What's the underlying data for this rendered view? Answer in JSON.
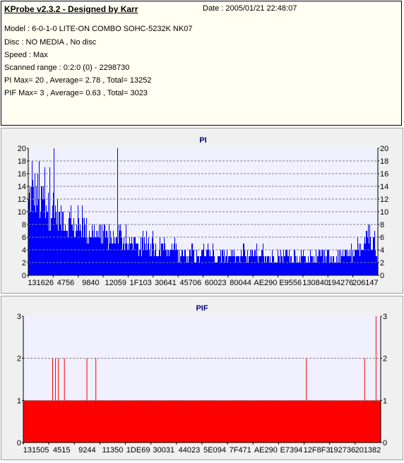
{
  "info": {
    "title": "KProbe v2.3.2 - Designed by Karr",
    "date": "Date : 2005/01/21 22:48:07",
    "lines": [
      "Model : 6-0-1-0 LITE-ON COMBO SOHC-5232K NK07",
      "Disc : NO MEDIA , No disc",
      "Speed : Max",
      "Scanned range : 0:2:0 (0) - 2298730",
      "PI Max= 20 , Average= 2.78 , Total= 13252",
      "PIF Max= 3 , Average= 0.63 , Total= 3023"
    ]
  },
  "colors": {
    "pi": "#0000ff",
    "pif": "#ff0000",
    "plot_bg": "#f0f0ff",
    "grid": "#808080"
  },
  "chart_data": [
    {
      "type": "bar",
      "title": "PI",
      "ylim": [
        0,
        20
      ],
      "yticks": [
        0,
        2,
        4,
        6,
        8,
        10,
        12,
        14,
        16,
        18,
        20
      ],
      "x_tick_labels": [
        "131626",
        "4756",
        "9840",
        "12059",
        "1F103",
        "30641",
        "45706",
        "60023",
        "80044",
        "AE290",
        "E9556",
        "130840",
        "194276",
        "206147"
      ],
      "grid": true,
      "envelope": [
        [
          0.0,
          14
        ],
        [
          0.005,
          17
        ],
        [
          0.01,
          15
        ],
        [
          0.015,
          18
        ],
        [
          0.02,
          16
        ],
        [
          0.025,
          17
        ],
        [
          0.03,
          15
        ],
        [
          0.035,
          14
        ],
        [
          0.04,
          16
        ],
        [
          0.05,
          15
        ],
        [
          0.06,
          13
        ],
        [
          0.07,
          14
        ],
        [
          0.075,
          12
        ],
        [
          0.08,
          13
        ],
        [
          0.09,
          11
        ],
        [
          0.1,
          12
        ],
        [
          0.11,
          10
        ],
        [
          0.12,
          11
        ],
        [
          0.13,
          9
        ],
        [
          0.14,
          10
        ],
        [
          0.15,
          9
        ],
        [
          0.16,
          10
        ],
        [
          0.17,
          8
        ],
        [
          0.18,
          9
        ],
        [
          0.19,
          8
        ],
        [
          0.2,
          9
        ],
        [
          0.21,
          7
        ],
        [
          0.22,
          8
        ],
        [
          0.23,
          7
        ],
        [
          0.24,
          8
        ],
        [
          0.25,
          6
        ],
        [
          0.26,
          8
        ],
        [
          0.27,
          7
        ],
        [
          0.28,
          6
        ],
        [
          0.29,
          6
        ],
        [
          0.3,
          7
        ],
        [
          0.31,
          6
        ],
        [
          0.32,
          5
        ],
        [
          0.33,
          6
        ],
        [
          0.34,
          6
        ],
        [
          0.35,
          5
        ],
        [
          0.36,
          6
        ],
        [
          0.37,
          5
        ],
        [
          0.38,
          5
        ],
        [
          0.39,
          6
        ],
        [
          0.4,
          4
        ],
        [
          0.41,
          5
        ],
        [
          0.42,
          6
        ],
        [
          0.43,
          4
        ],
        [
          0.44,
          5
        ],
        [
          0.45,
          4
        ],
        [
          0.46,
          4
        ],
        [
          0.47,
          5
        ],
        [
          0.48,
          4
        ],
        [
          0.49,
          4
        ],
        [
          0.5,
          5
        ],
        [
          0.51,
          4
        ],
        [
          0.52,
          4
        ],
        [
          0.53,
          4
        ],
        [
          0.54,
          3
        ],
        [
          0.55,
          4
        ],
        [
          0.56,
          4
        ],
        [
          0.57,
          3
        ],
        [
          0.58,
          4
        ],
        [
          0.59,
          4
        ],
        [
          0.6,
          3
        ],
        [
          0.61,
          4
        ],
        [
          0.62,
          4
        ],
        [
          0.63,
          3
        ],
        [
          0.64,
          4
        ],
        [
          0.65,
          4
        ],
        [
          0.66,
          3
        ],
        [
          0.67,
          4
        ],
        [
          0.68,
          4
        ],
        [
          0.69,
          3
        ],
        [
          0.7,
          4
        ],
        [
          0.71,
          4
        ],
        [
          0.72,
          3
        ],
        [
          0.73,
          4
        ],
        [
          0.74,
          4
        ],
        [
          0.75,
          3
        ],
        [
          0.76,
          4
        ],
        [
          0.77,
          3
        ],
        [
          0.78,
          4
        ],
        [
          0.79,
          4
        ],
        [
          0.8,
          3
        ],
        [
          0.81,
          4
        ],
        [
          0.82,
          3
        ],
        [
          0.83,
          4
        ],
        [
          0.84,
          4
        ],
        [
          0.85,
          3
        ],
        [
          0.86,
          4
        ],
        [
          0.87,
          4
        ],
        [
          0.88,
          3
        ],
        [
          0.89,
          4
        ],
        [
          0.9,
          4
        ],
        [
          0.91,
          5
        ],
        [
          0.92,
          4
        ],
        [
          0.93,
          4
        ],
        [
          0.94,
          5
        ],
        [
          0.95,
          5
        ],
        [
          0.96,
          5
        ],
        [
          0.97,
          6
        ],
        [
          0.975,
          9
        ],
        [
          0.98,
          7
        ],
        [
          0.985,
          5
        ],
        [
          0.99,
          6
        ],
        [
          0.995,
          5
        ],
        [
          1.0,
          4
        ]
      ],
      "peaks": [
        [
          0.073,
          20
        ],
        [
          0.255,
          20
        ],
        [
          0.01,
          18
        ],
        [
          0.03,
          18
        ],
        [
          0.06,
          17
        ]
      ]
    },
    {
      "type": "bar",
      "title": "PIF",
      "ylim": [
        0,
        3
      ],
      "yticks": [
        0,
        1,
        2,
        3
      ],
      "x_tick_labels": [
        "131505",
        "4515",
        "9244",
        "11350",
        "1DE69",
        "30031",
        "44023",
        "5E094",
        "7F471",
        "AE290",
        "E7394",
        "12F8F3",
        "192736",
        "201382"
      ],
      "grid": true,
      "baseline": 1,
      "spikes": [
        [
          0.082,
          2
        ],
        [
          0.09,
          2
        ],
        [
          0.098,
          2
        ],
        [
          0.115,
          2
        ],
        [
          0.178,
          2
        ],
        [
          0.203,
          2
        ],
        [
          0.792,
          2
        ],
        [
          0.955,
          2
        ],
        [
          0.987,
          3
        ]
      ]
    }
  ]
}
